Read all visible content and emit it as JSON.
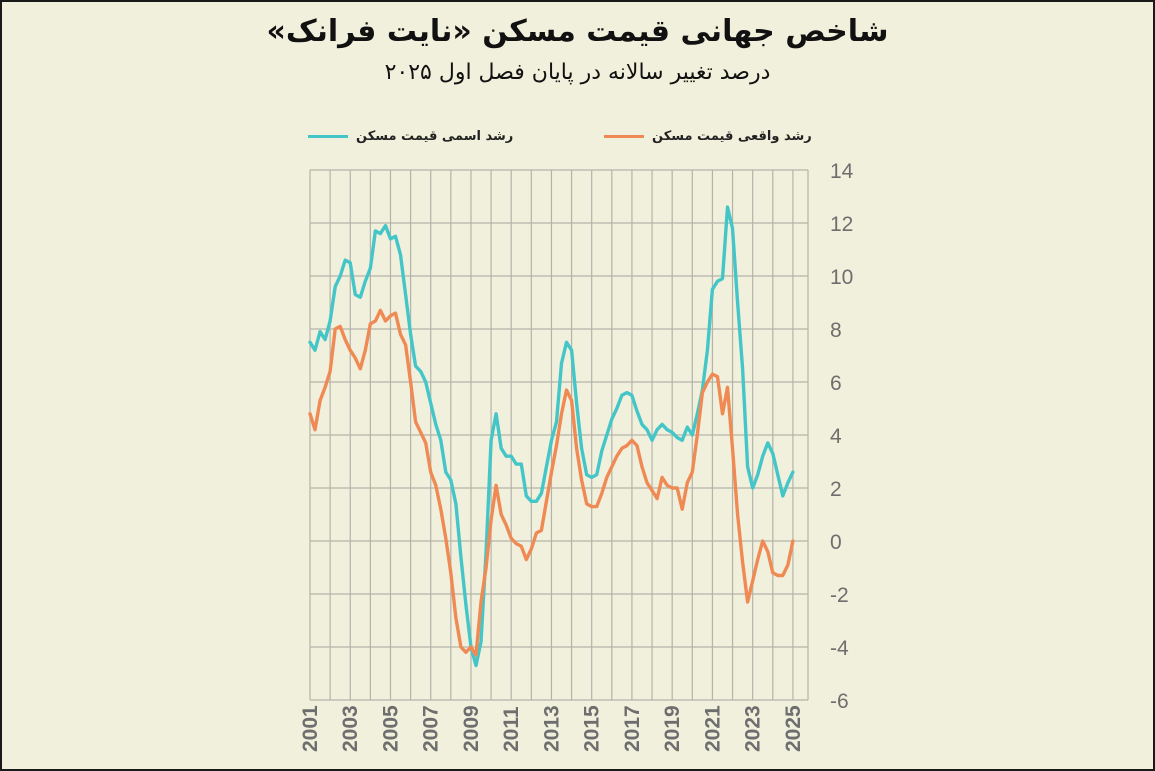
{
  "title": "شاخص جهانی قیمت مسکن «نایت فرانک»",
  "subtitle": "درصد تغییر سالانه در پایان فصل اول ۲۰۲۵",
  "colors": {
    "nominal": "#44c6c8",
    "real": "#f08a55",
    "grid": "#b3b3aa",
    "background": "#f1f0dc"
  },
  "chart_data": {
    "type": "line",
    "title": "شاخص جهانی قیمت مسکن «نایت فرانک»",
    "subtitle": "درصد تغییر سالانه در پایان فصل اول ۲۰۲۵",
    "xlabel": "",
    "ylabel": "",
    "ylim": [
      -6,
      14
    ],
    "yticks": [
      14,
      12,
      10,
      8,
      6,
      4,
      2,
      0,
      -2,
      -4,
      -6
    ],
    "xlim": [
      2001,
      2025.75
    ],
    "xticks": [
      "2001",
      "2003",
      "2005",
      "2007",
      "2009",
      "2011",
      "2013",
      "2015",
      "2017",
      "2019",
      "2021",
      "2023",
      "2025"
    ],
    "grid": true,
    "legend_position": "top",
    "series": [
      {
        "name": "رشد اسمی قیمت مسکن",
        "color": "#44c6c8",
        "x": [
          2001.0,
          2001.25,
          2001.5,
          2001.75,
          2002.0,
          2002.25,
          2002.5,
          2002.75,
          2003.0,
          2003.25,
          2003.5,
          2003.75,
          2004.0,
          2004.25,
          2004.5,
          2004.75,
          2005.0,
          2005.25,
          2005.5,
          2005.75,
          2006.0,
          2006.25,
          2006.5,
          2006.75,
          2007.0,
          2007.25,
          2007.5,
          2007.75,
          2008.0,
          2008.25,
          2008.5,
          2008.75,
          2009.0,
          2009.25,
          2009.5,
          2009.75,
          2010.0,
          2010.25,
          2010.5,
          2010.75,
          2011.0,
          2011.25,
          2011.5,
          2011.75,
          2012.0,
          2012.25,
          2012.5,
          2012.75,
          2013.0,
          2013.25,
          2013.5,
          2013.75,
          2014.0,
          2014.25,
          2014.5,
          2014.75,
          2015.0,
          2015.25,
          2015.5,
          2015.75,
          2016.0,
          2016.25,
          2016.5,
          2016.75,
          2017.0,
          2017.25,
          2017.5,
          2017.75,
          2018.0,
          2018.25,
          2018.5,
          2018.75,
          2019.0,
          2019.25,
          2019.5,
          2019.75,
          2020.0,
          2020.25,
          2020.5,
          2020.75,
          2021.0,
          2021.25,
          2021.5,
          2021.75,
          2022.0,
          2022.25,
          2022.5,
          2022.75,
          2023.0,
          2023.25,
          2023.5,
          2023.75,
          2024.0,
          2024.25,
          2024.5,
          2024.75,
          2025.0
        ],
        "values": [
          7.5,
          7.2,
          7.9,
          7.6,
          8.3,
          9.6,
          10.0,
          10.6,
          10.5,
          9.3,
          9.2,
          9.8,
          10.3,
          11.7,
          11.6,
          11.9,
          11.4,
          11.5,
          10.8,
          9.3,
          7.8,
          6.6,
          6.4,
          6.0,
          5.2,
          4.4,
          3.8,
          2.6,
          2.3,
          1.4,
          -0.6,
          -2.4,
          -4.0,
          -4.7,
          -3.8,
          -0.4,
          3.8,
          4.8,
          3.5,
          3.2,
          3.2,
          2.9,
          2.9,
          1.7,
          1.5,
          1.5,
          1.8,
          2.8,
          3.8,
          4.5,
          6.7,
          7.5,
          7.2,
          5.2,
          3.5,
          2.5,
          2.4,
          2.5,
          3.4,
          4.0,
          4.6,
          5.0,
          5.5,
          5.6,
          5.5,
          4.9,
          4.4,
          4.2,
          3.8,
          4.2,
          4.4,
          4.2,
          4.1,
          3.9,
          3.8,
          4.3,
          4.0,
          4.8,
          5.7,
          7.2,
          9.5,
          9.8,
          9.9,
          12.6,
          11.8,
          9.0,
          6.5,
          2.8,
          2.0,
          2.5,
          3.2,
          3.7,
          3.3,
          2.5,
          1.7,
          2.2,
          2.6
        ]
      },
      {
        "name": "رشد واقعی قیمت مسکن",
        "color": "#f08a55",
        "x": [
          2001.0,
          2001.25,
          2001.5,
          2001.75,
          2002.0,
          2002.25,
          2002.5,
          2002.75,
          2003.0,
          2003.25,
          2003.5,
          2003.75,
          2004.0,
          2004.25,
          2004.5,
          2004.75,
          2005.0,
          2005.25,
          2005.5,
          2005.75,
          2006.0,
          2006.25,
          2006.5,
          2006.75,
          2007.0,
          2007.25,
          2007.5,
          2007.75,
          2008.0,
          2008.25,
          2008.5,
          2008.75,
          2009.0,
          2009.25,
          2009.5,
          2009.75,
          2010.0,
          2010.25,
          2010.5,
          2010.75,
          2011.0,
          2011.25,
          2011.5,
          2011.75,
          2012.0,
          2012.25,
          2012.5,
          2012.75,
          2013.0,
          2013.25,
          2013.5,
          2013.75,
          2014.0,
          2014.25,
          2014.5,
          2014.75,
          2015.0,
          2015.25,
          2015.5,
          2015.75,
          2016.0,
          2016.25,
          2016.5,
          2016.75,
          2017.0,
          2017.25,
          2017.5,
          2017.75,
          2018.0,
          2018.25,
          2018.5,
          2018.75,
          2019.0,
          2019.25,
          2019.5,
          2019.75,
          2020.0,
          2020.25,
          2020.5,
          2020.75,
          2021.0,
          2021.25,
          2021.5,
          2021.75,
          2022.0,
          2022.25,
          2022.5,
          2022.75,
          2023.0,
          2023.25,
          2023.5,
          2023.75,
          2024.0,
          2024.25,
          2024.5,
          2024.75,
          2025.0
        ],
        "values": [
          4.8,
          4.2,
          5.3,
          5.8,
          6.4,
          8.0,
          8.1,
          7.6,
          7.2,
          6.9,
          6.5,
          7.2,
          8.2,
          8.3,
          8.7,
          8.3,
          8.5,
          8.6,
          7.8,
          7.4,
          6.0,
          4.5,
          4.1,
          3.7,
          2.6,
          2.1,
          1.2,
          0.1,
          -1.2,
          -2.9,
          -4.0,
          -4.2,
          -4.0,
          -4.3,
          -2.3,
          -1.0,
          0.8,
          2.1,
          1.0,
          0.6,
          0.1,
          -0.1,
          -0.2,
          -0.7,
          -0.3,
          0.3,
          0.4,
          1.5,
          2.6,
          3.6,
          4.8,
          5.7,
          5.3,
          3.5,
          2.3,
          1.4,
          1.3,
          1.3,
          1.8,
          2.4,
          2.8,
          3.2,
          3.5,
          3.6,
          3.8,
          3.6,
          2.8,
          2.2,
          1.9,
          1.6,
          2.4,
          2.1,
          2.0,
          2.0,
          1.2,
          2.2,
          2.6,
          4.0,
          5.6,
          6.0,
          6.3,
          6.2,
          4.8,
          5.8,
          3.5,
          1.0,
          -0.8,
          -2.3,
          -1.5,
          -0.7,
          0.0,
          -0.4,
          -1.2,
          -1.3,
          -1.3,
          -0.9,
          0.0
        ]
      }
    ]
  }
}
